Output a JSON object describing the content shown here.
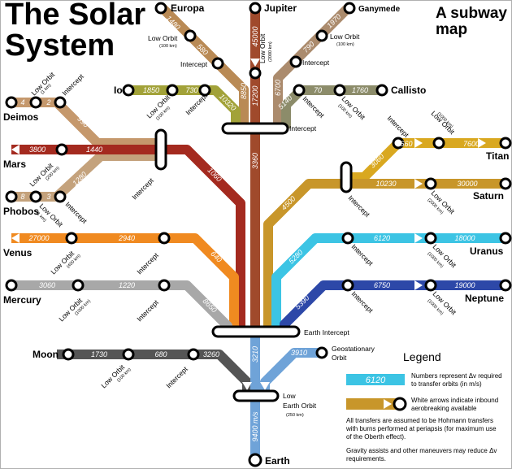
{
  "title": [
    "The Solar",
    "System"
  ],
  "subtitle": [
    "A subway",
    "map"
  ],
  "colors": {
    "jupiter": "#a04a2c",
    "europa": "#b98a55",
    "ganymede": "#ab8b6d",
    "io": "#a2a239",
    "callisto": "#8c8c6a",
    "deimos": "#c5986c",
    "mars": "#a42a1f",
    "phobos": "#c4a27c",
    "titan": "#d9a820",
    "saturn": "#c8962a",
    "venus": "#f08a20",
    "uranus": "#3cc4e4",
    "mercury": "#a8a8a8",
    "neptune": "#2d48a8",
    "moon": "#555555",
    "geo": "#6fa3d8",
    "leo": "#6fa3d8",
    "legend_bar": "#3cc4e4",
    "legend_bar2": "#c8962a"
  },
  "bodies": {
    "europa": "Europa",
    "jupiter": "Jupiter",
    "ganymede": "Ganymede",
    "io": "Io",
    "callisto": "Callisto",
    "deimos": "Deimos",
    "mars": "Mars",
    "phobos": "Phobos",
    "titan": "Titan",
    "saturn": "Saturn",
    "venus": "Venus",
    "uranus": "Uranus",
    "mercury": "Mercury",
    "neptune": "Neptune",
    "moon": "Moon",
    "earth": "Earth"
  },
  "labels": {
    "low_orbit": "Low Orbit",
    "intercept": "Intercept",
    "jupiter_intercept": "Intercept",
    "earth_intercept": "Earth Intercept",
    "geo": [
      "Geostationary",
      "Orbit"
    ],
    "leo": [
      "Low",
      "Earth Orbit"
    ],
    "leo_alt": "(250 km)",
    "europa_lo_alt": "(100 km)",
    "ganymede_lo_alt": "(100 km)",
    "jupiter_lo_alt": "(2000 km)",
    "io_lo_alt": "(100 km)",
    "callisto_lo_alt": "(100 km)",
    "deimos_lo_alt": "(1 km)",
    "mars_lo_alt": "(200 km)",
    "phobos_lo_alt": "(1 km)",
    "titan_lo_alt": "(1000 km)",
    "saturn_lo_alt": "(2000 km)",
    "venus_lo_alt": "(400 km)",
    "uranus_lo_alt": "(1000 km)",
    "mercury_lo_alt": "(1000 km)",
    "neptune_lo_alt": "(1000 km)",
    "moon_lo_alt": "(100 km)"
  },
  "delta_v": {
    "europa_a": "1480",
    "europa_b": "580",
    "europa_c": "8850",
    "jupiter_a": "45000",
    "jupiter_b": "17200",
    "jupiter_c": "3360",
    "ganymede_a": "1970",
    "ganymede_b": "790",
    "ganymede_c": "6700",
    "io_a": "1850",
    "io_b": "730",
    "io_c": "10320",
    "callisto_a": "70",
    "callisto_b": "1760",
    "callisto_c": "5140",
    "deimos_a": "4",
    "deimos_b": "2",
    "deimos_c": "990",
    "mars_a": "3800",
    "mars_b": "1440",
    "mars_c": "1060",
    "phobos_a": "8",
    "phobos_b": "3",
    "phobos_c": "1280",
    "titan_a": "660",
    "titan_b": "7600",
    "titan_c": "3060",
    "saturn_a": "10230",
    "saturn_b": "30000",
    "saturn_c": "4500",
    "venus_a": "27000",
    "venus_b": "2940",
    "venus_c": "640",
    "uranus_a": "6120",
    "uranus_b": "18000",
    "uranus_c": "5280",
    "mercury_a": "3060",
    "mercury_b": "1220",
    "mercury_c": "8650",
    "neptune_a": "6750",
    "neptune_b": "19000",
    "neptune_c": "5390",
    "moon_a": "1730",
    "moon_b": "680",
    "moon_c": "3260",
    "geo_a": "3910",
    "leo_a": "3210",
    "earth_a": "9400 m/s"
  },
  "legend": {
    "heading": "Legend",
    "sample_value": "6120",
    "item1": [
      "Numbers represent Δv required",
      "to transfer orbits (in m/s)"
    ],
    "item2": [
      "White arrows indicate inbound",
      "aerobreaking available"
    ],
    "note1": [
      "All transfers are assumed to be Hohmann transfers",
      "with burns performed at periapsis (for maximum use",
      "of the Oberth effect)."
    ],
    "note2": [
      "Gravity assists and other maneuvers may reduce Δv",
      "requirements."
    ]
  }
}
